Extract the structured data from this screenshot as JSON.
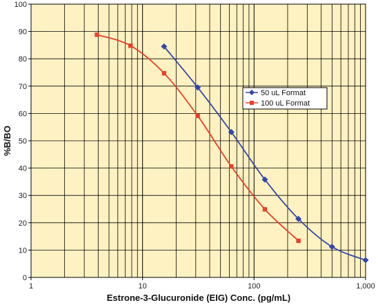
{
  "chart_data": {
    "type": "line",
    "xlabel": "Estrone-3-Glucuronide (EIG) Conc. (pg/mL)",
    "ylabel": "%B/BO",
    "xscale": "log",
    "xlim": [
      1,
      1000
    ],
    "ylim": [
      0,
      100
    ],
    "xticks": [
      "1",
      "10",
      "100",
      "1,000"
    ],
    "yticks": [
      "0",
      "10",
      "20",
      "30",
      "40",
      "50",
      "60",
      "70",
      "80",
      "90",
      "100"
    ],
    "grid": true,
    "legend_position": "right",
    "plot_background": "#fff2c2",
    "series": [
      {
        "name": "50 uL Format",
        "color": "#3347a8",
        "marker": "diamond",
        "x": [
          15.6,
          31.25,
          62.5,
          125,
          250,
          500,
          1000
        ],
        "y": [
          84.5,
          69.5,
          53.2,
          35.8,
          21.4,
          11.2,
          6.3
        ]
      },
      {
        "name": "100 uL Format",
        "color": "#e8402a",
        "marker": "square",
        "x": [
          3.9,
          7.8,
          15.6,
          31.25,
          62.5,
          125,
          250
        ],
        "y": [
          88.8,
          84.8,
          74.7,
          59.1,
          40.6,
          24.9,
          13.4
        ]
      }
    ]
  }
}
